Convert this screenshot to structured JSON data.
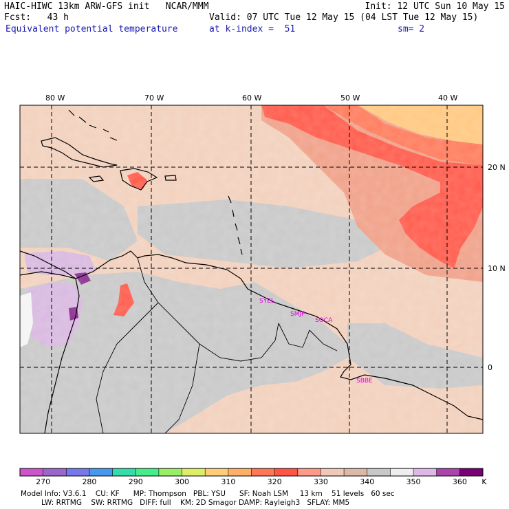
{
  "header": {
    "model_line": "HAIC-HIWC 13km ARW-GFS init   NCAR/MMM",
    "init": "Init: 12 UTC Sun 10 May 15",
    "fcst": "Fcst:   43 h",
    "valid": "Valid: 07 UTC Tue 12 May 15 (04 LST Tue 12 May 15)",
    "field": "Equivalent potential temperature",
    "level": "at k-index =  51",
    "smoothing": "sm= 2"
  },
  "map": {
    "lon_labels": [
      "80 W",
      "70 W",
      "60 W",
      "50 W",
      "40 W"
    ],
    "lat_labels": [
      "20 N",
      "10 N",
      "0"
    ],
    "stations": [
      "SYEL",
      "SMJP",
      "SOCA",
      "SBBE"
    ],
    "colors": {
      "ocean_base": "#f2d0bc",
      "land_gray": "#c8c8c8",
      "warm": "#f0a088",
      "hot": "#ff5a4a",
      "hotter": "#ff7a5a",
      "top": "#ffc880",
      "purple": "#d8b8e0",
      "dark_purple": "#8a2c90",
      "station": "#e000e0"
    }
  },
  "colorbar": {
    "unit": "K",
    "ticks": [
      "270",
      "280",
      "290",
      "300",
      "310",
      "320",
      "330",
      "340",
      "350",
      "360"
    ],
    "colors": [
      "#cc55cc",
      "#9966cc",
      "#7777ee",
      "#4499ee",
      "#33ddaa",
      "#44ee88",
      "#99ee66",
      "#ddee66",
      "#ffcc77",
      "#ffb066",
      "#ff7755",
      "#ff5544",
      "#ff9988",
      "#f0c8b8",
      "#ddb8a8",
      "#c8c8c8",
      "#eeeeee",
      "#e0b8e8",
      "#aa44aa",
      "#770077"
    ]
  },
  "footer": {
    "line1": "Model Info: V3.6.1    CU: KF      MP: Thompson   PBL: YSU      SF: Noah LSM     13 km    51 levels   60 sec",
    "line2": "         LW: RRTMG    SW: RRTMG   DIFF: full    KM: 2D Smagor DAMP: Rayleigh3   SFLAY: MM5"
  }
}
